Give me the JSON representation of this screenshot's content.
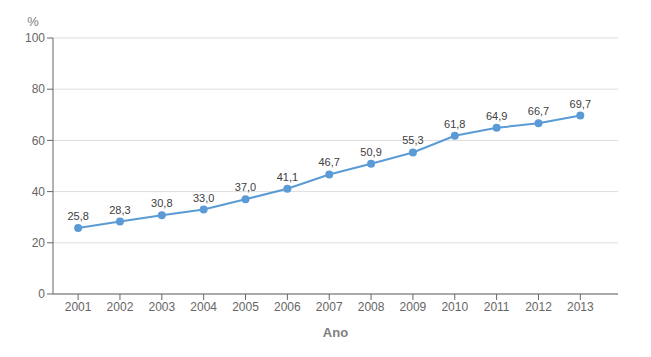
{
  "chart_data": {
    "type": "line",
    "x": [
      2001,
      2002,
      2003,
      2004,
      2005,
      2006,
      2007,
      2008,
      2009,
      2010,
      2011,
      2012,
      2013
    ],
    "values": [
      25.8,
      28.3,
      30.8,
      33.0,
      37.0,
      41.1,
      46.7,
      50.9,
      55.3,
      61.8,
      64.9,
      66.7,
      69.7
    ],
    "value_labels": [
      "25,8",
      "28,3",
      "30,8",
      "33,0",
      "37,0",
      "41,1",
      "46,7",
      "50,9",
      "55,3",
      "61,8",
      "64,9",
      "66,7",
      "69,7"
    ],
    "color": "#5B9BD5",
    "marker": "circle",
    "xlabel": "Ano",
    "ylabel": "%",
    "xlim": [
      2000.4,
      2013.9
    ],
    "xticks": [
      2001,
      2002,
      2003,
      2004,
      2005,
      2006,
      2007,
      2008,
      2009,
      2010,
      2011,
      2012,
      2013
    ],
    "ylim": [
      0,
      100
    ],
    "yticks": [
      0,
      20,
      40,
      60,
      80,
      100
    ],
    "grid": true,
    "data_labels": true
  }
}
